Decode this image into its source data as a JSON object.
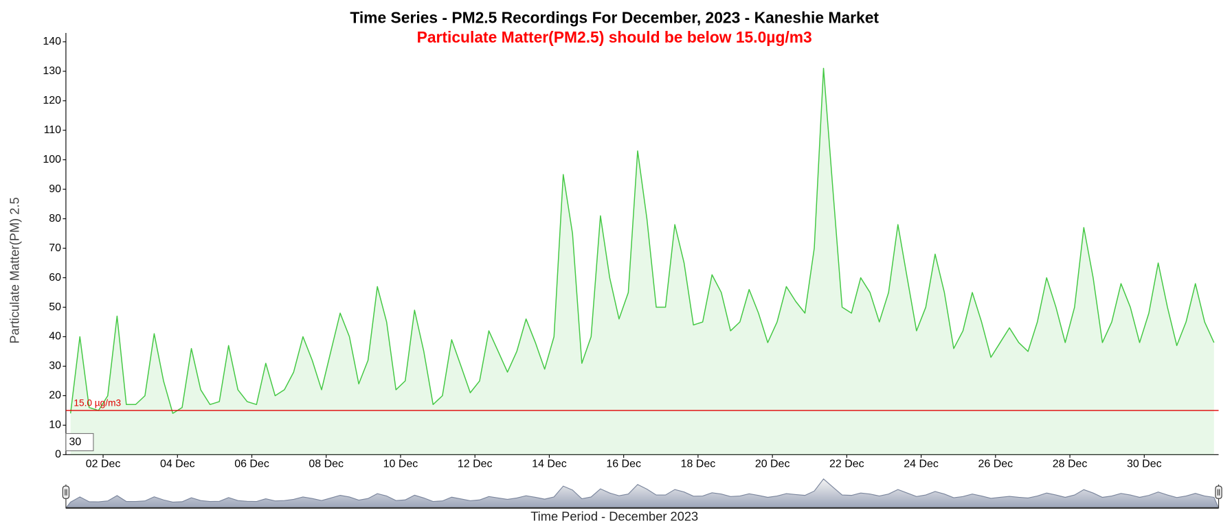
{
  "chart_data": {
    "type": "line",
    "title": "Time Series - PM2.5 Recordings For December, 2023 - Kaneshie Market",
    "subtitle": "Particulate Matter(PM2.5) should be below 15.0µg/m3",
    "x_label": "Time Period - December 2023",
    "y_label": "Particulate Matter(PM) 2.5",
    "roll_period": "30",
    "threshold": {
      "value": 15,
      "label": "15.0 µg/m3",
      "color": "#e00000"
    },
    "xlim": [
      1,
      32
    ],
    "ylim": [
      0,
      143
    ],
    "yticks": [
      0,
      10,
      20,
      30,
      40,
      50,
      60,
      70,
      80,
      90,
      100,
      110,
      120,
      130,
      140
    ],
    "xticks": [
      {
        "value": 2,
        "label": "02 Dec"
      },
      {
        "value": 4,
        "label": "04 Dec"
      },
      {
        "value": 6,
        "label": "06 Dec"
      },
      {
        "value": 8,
        "label": "08 Dec"
      },
      {
        "value": 10,
        "label": "10 Dec"
      },
      {
        "value": 12,
        "label": "12 Dec"
      },
      {
        "value": 14,
        "label": "14 Dec"
      },
      {
        "value": 16,
        "label": "16 Dec"
      },
      {
        "value": 18,
        "label": "18 Dec"
      },
      {
        "value": 20,
        "label": "20 Dec"
      },
      {
        "value": 22,
        "label": "22 Dec"
      },
      {
        "value": 24,
        "label": "24 Dec"
      },
      {
        "value": 26,
        "label": "26 Dec"
      },
      {
        "value": 28,
        "label": "28 Dec"
      },
      {
        "value": 30,
        "label": "30 Dec"
      }
    ],
    "x": [
      1.125,
      1.375,
      1.625,
      1.875,
      2.125,
      2.375,
      2.625,
      2.875,
      3.125,
      3.375,
      3.625,
      3.875,
      4.125,
      4.375,
      4.625,
      4.875,
      5.125,
      5.375,
      5.625,
      5.875,
      6.125,
      6.375,
      6.625,
      6.875,
      7.125,
      7.375,
      7.625,
      7.875,
      8.125,
      8.375,
      8.625,
      8.875,
      9.125,
      9.375,
      9.625,
      9.875,
      10.125,
      10.375,
      10.625,
      10.875,
      11.125,
      11.375,
      11.625,
      11.875,
      12.125,
      12.375,
      12.625,
      12.875,
      13.125,
      13.375,
      13.625,
      13.875,
      14.125,
      14.375,
      14.625,
      14.875,
      15.125,
      15.375,
      15.625,
      15.875,
      16.125,
      16.375,
      16.625,
      16.875,
      17.125,
      17.375,
      17.625,
      17.875,
      18.125,
      18.375,
      18.625,
      18.875,
      19.125,
      19.375,
      19.625,
      19.875,
      20.125,
      20.375,
      20.625,
      20.875,
      21.125,
      21.375,
      21.625,
      21.875,
      22.125,
      22.375,
      22.625,
      22.875,
      23.125,
      23.375,
      23.625,
      23.875,
      24.125,
      24.375,
      24.625,
      24.875,
      25.125,
      25.375,
      25.625,
      25.875,
      26.125,
      26.375,
      26.625,
      26.875,
      27.125,
      27.375,
      27.625,
      27.875,
      28.125,
      28.375,
      28.625,
      28.875,
      29.125,
      29.375,
      29.625,
      29.875,
      30.125,
      30.375,
      30.625,
      30.875,
      31.125,
      31.375,
      31.625,
      31.875
    ],
    "series": [
      {
        "name": "PM2.5",
        "color": "#44c844",
        "values": [
          14,
          40,
          16,
          15,
          20,
          47,
          17,
          17,
          20,
          41,
          25,
          14,
          16,
          36,
          22,
          17,
          18,
          37,
          22,
          18,
          17,
          31,
          20,
          22,
          28,
          40,
          32,
          22,
          35,
          48,
          40,
          24,
          32,
          57,
          45,
          22,
          25,
          49,
          35,
          17,
          20,
          39,
          30,
          21,
          25,
          42,
          35,
          28,
          35,
          46,
          38,
          29,
          40,
          95,
          75,
          31,
          40,
          81,
          60,
          46,
          55,
          103,
          80,
          50,
          50,
          78,
          65,
          44,
          45,
          61,
          55,
          42,
          45,
          56,
          48,
          38,
          45,
          57,
          52,
          48,
          70,
          131,
          90,
          50,
          48,
          60,
          55,
          45,
          55,
          78,
          60,
          42,
          50,
          68,
          55,
          36,
          42,
          55,
          45,
          33,
          38,
          43,
          38,
          35,
          45,
          60,
          50,
          38,
          50,
          77,
          60,
          38,
          45,
          58,
          50,
          38,
          48,
          65,
          50,
          37,
          45,
          58,
          45,
          38
        ]
      }
    ]
  }
}
